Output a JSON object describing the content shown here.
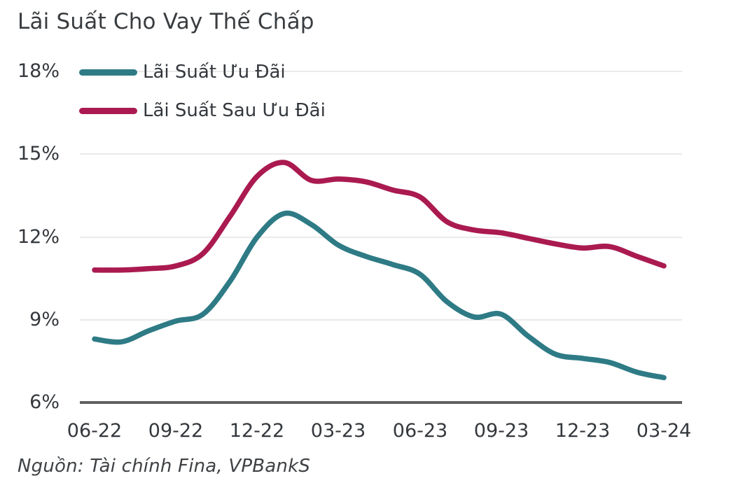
{
  "chart": {
    "title": "Lãi Suất Cho Vay Thế Chấp"
  },
  "source": {
    "text": "Nguồn: Tài chính Fina, VPBankS"
  },
  "chart_data": {
    "type": "line",
    "title": "Lãi Suất Cho Vay Thế Chấp",
    "x": [
      "06-22",
      "07-22",
      "08-22",
      "09-22",
      "10-22",
      "11-22",
      "12-22",
      "01-23",
      "02-23",
      "03-23",
      "04-23",
      "05-23",
      "06-23",
      "07-23",
      "08-23",
      "09-23",
      "10-23",
      "11-23",
      "12-23",
      "01-24",
      "02-24",
      "03-24"
    ],
    "xtick_labels": [
      "06-22",
      "09-22",
      "12-22",
      "03-23",
      "06-23",
      "09-23",
      "12-23",
      "03-24"
    ],
    "yticks": [
      18,
      15,
      12,
      9,
      6
    ],
    "ytick_labels": [
      "18%",
      "15%",
      "12%",
      "9%",
      "6%"
    ],
    "ylim": [
      6,
      18
    ],
    "unit": "%",
    "grid": "horizontal",
    "legend_position": "top-left",
    "series": [
      {
        "name": "Lãi Suất Ưu Đãi",
        "color": "#2E7B86",
        "values": [
          8.3,
          8.2,
          8.6,
          8.95,
          9.2,
          10.4,
          12.0,
          12.85,
          12.45,
          11.7,
          11.3,
          11.0,
          10.65,
          9.65,
          9.1,
          9.2,
          8.4,
          7.75,
          7.6,
          7.45,
          7.1,
          6.9
        ]
      },
      {
        "name": "Lãi Suất Sau Ưu Đãi",
        "color": "#AA1A50",
        "values": [
          10.8,
          10.8,
          10.85,
          10.95,
          11.4,
          12.75,
          14.2,
          14.7,
          14.05,
          14.1,
          14.0,
          13.7,
          13.45,
          12.55,
          12.25,
          12.15,
          11.95,
          11.75,
          11.6,
          11.65,
          11.3,
          10.95
        ]
      }
    ],
    "colors": {
      "grid": "#EAEAEA",
      "axis": "#606060",
      "text": "#34383D",
      "title": "#3A3D40"
    }
  }
}
